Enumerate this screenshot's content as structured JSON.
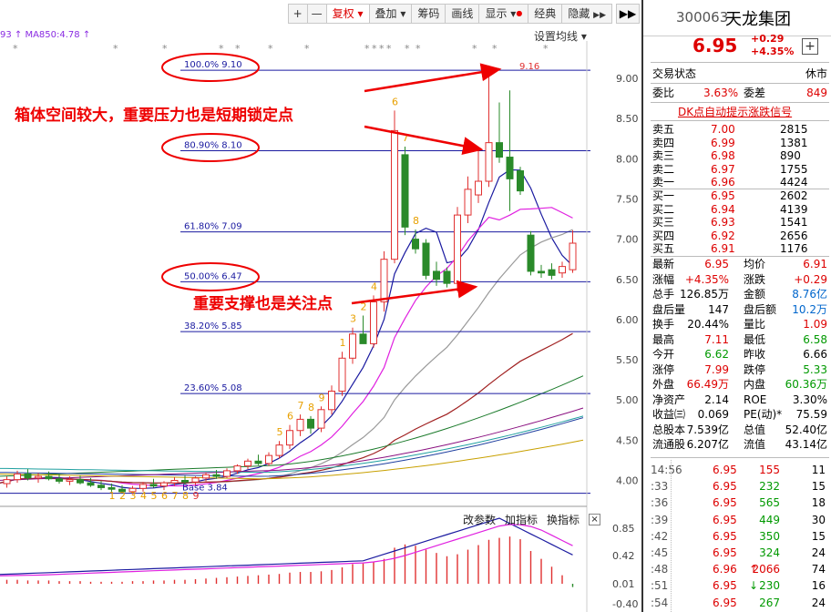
{
  "toolbar": {
    "plus": "+",
    "minus": "—",
    "fuquan": "复权",
    "diejia": "叠加",
    "chouma": "筹码",
    "huaxian": "画线",
    "xianshi": "显示",
    "jingdian": "经典",
    "yincang": "隐藏",
    "scroll": "▶▶"
  },
  "ma_legend": "93 ↑ MA850:4.78 ↑",
  "settings": "设置均线",
  "price_axis": [
    "9.00",
    "8.50",
    "8.00",
    "7.50",
    "7.00",
    "6.50",
    "6.00",
    "5.50",
    "5.00",
    "4.50",
    "4.00"
  ],
  "indicator_axis": [
    "0.85",
    "0.42",
    "0.01",
    "-0.40"
  ],
  "fib_levels": [
    {
      "label": "100.0% 9.10",
      "price": 9.1
    },
    {
      "label": "80.90% 8.10",
      "price": 8.1
    },
    {
      "label": "61.80% 7.09",
      "price": 7.09
    },
    {
      "label": "50.00% 6.47",
      "price": 6.47
    },
    {
      "label": "38.20% 5.85",
      "price": 5.85
    },
    {
      "label": "23.60% 5.08",
      "price": 5.08
    },
    {
      "label": "Base 3.84",
      "price": 3.84
    }
  ],
  "high_label": "9.16",
  "annotations": {
    "top": "箱体空间较大，重要压力也是短期锁定点",
    "bottom": "重要支撑也是关注点"
  },
  "indicator_menu": {
    "params": "改参数",
    "add": "加指标",
    "switch": "换指标",
    "close": "×"
  },
  "quote": {
    "code": "300063",
    "name": "天龙集团",
    "price": "6.95",
    "change": "+0.29",
    "change_pct": "+4.35%",
    "plus": "+",
    "trade_status_label": "交易状态",
    "trade_status": "休市",
    "weibi_label": "委比",
    "weibi": "3.63%",
    "weicha_label": "委差",
    "weicha": "849",
    "dk_signal": "DK点自动提示涨跌信号",
    "asks": [
      {
        "label": "卖五",
        "price": "7.00",
        "vol": "2815"
      },
      {
        "label": "卖四",
        "price": "6.99",
        "vol": "1381"
      },
      {
        "label": "卖三",
        "price": "6.98",
        "vol": "890"
      },
      {
        "label": "卖二",
        "price": "6.97",
        "vol": "1755"
      },
      {
        "label": "卖一",
        "price": "6.96",
        "vol": "4424"
      }
    ],
    "bids": [
      {
        "label": "买一",
        "price": "6.95",
        "vol": "2602"
      },
      {
        "label": "买二",
        "price": "6.94",
        "vol": "4139"
      },
      {
        "label": "买三",
        "price": "6.93",
        "vol": "1541"
      },
      {
        "label": "买四",
        "price": "6.92",
        "vol": "2656"
      },
      {
        "label": "买五",
        "price": "6.91",
        "vol": "1176"
      }
    ],
    "stats": [
      {
        "l1": "最新",
        "v1": "6.95",
        "c1": "red",
        "l2": "均价",
        "v2": "6.91",
        "c2": "red"
      },
      {
        "l1": "涨幅",
        "v1": "+4.35%",
        "c1": "red",
        "l2": "涨跌",
        "v2": "+0.29",
        "c2": "red"
      },
      {
        "l1": "总手",
        "v1": "126.85万",
        "c1": "",
        "l2": "金额",
        "v2": "8.76亿",
        "c2": "blu"
      },
      {
        "l1": "盘后量",
        "v1": "147",
        "c1": "",
        "l2": "盘后额",
        "v2": "10.2万",
        "c2": "blu"
      },
      {
        "l1": "换手",
        "v1": "20.44%",
        "c1": "",
        "l2": "量比",
        "v2": "1.09",
        "c2": "red"
      },
      {
        "l1": "最高",
        "v1": "7.11",
        "c1": "red",
        "l2": "最低",
        "v2": "6.58",
        "c2": "grn"
      },
      {
        "l1": "今开",
        "v1": "6.62",
        "c1": "grn",
        "l2": "昨收",
        "v2": "6.66",
        "c2": ""
      },
      {
        "l1": "涨停",
        "v1": "7.99",
        "c1": "red",
        "l2": "跌停",
        "v2": "5.33",
        "c2": "grn"
      },
      {
        "l1": "外盘",
        "v1": "66.49万",
        "c1": "red",
        "l2": "内盘",
        "v2": "60.36万",
        "c2": "grn"
      },
      {
        "l1": "净资产",
        "v1": "2.14",
        "c1": "",
        "l2": "ROE",
        "v2": "3.30%",
        "c2": ""
      },
      {
        "l1": "收益㈢",
        "v1": "0.069",
        "c1": "",
        "l2": "PE(动)*",
        "v2": "75.59",
        "c2": ""
      },
      {
        "l1": "总股本",
        "v1": "7.539亿",
        "c1": "",
        "l2": "总值",
        "v2": "52.40亿",
        "c2": ""
      },
      {
        "l1": "流通股",
        "v1": "6.207亿",
        "c1": "",
        "l2": "流值",
        "v2": "43.14亿",
        "c2": ""
      }
    ],
    "ticks": [
      {
        "time": "14:56",
        "price": "6.95",
        "vol": "155",
        "n": "11",
        "pc": "red",
        "vc": "red",
        "arrow": ""
      },
      {
        "time": ":33",
        "price": "6.95",
        "vol": "232",
        "n": "15",
        "pc": "red",
        "vc": "grn",
        "arrow": ""
      },
      {
        "time": ":36",
        "price": "6.95",
        "vol": "565",
        "n": "18",
        "pc": "red",
        "vc": "grn",
        "arrow": ""
      },
      {
        "time": ":39",
        "price": "6.95",
        "vol": "449",
        "n": "30",
        "pc": "red",
        "vc": "grn",
        "arrow": ""
      },
      {
        "time": ":42",
        "price": "6.95",
        "vol": "350",
        "n": "15",
        "pc": "red",
        "vc": "grn",
        "arrow": ""
      },
      {
        "time": ":45",
        "price": "6.95",
        "vol": "324",
        "n": "24",
        "pc": "red",
        "vc": "grn",
        "arrow": ""
      },
      {
        "time": ":48",
        "price": "6.96",
        "vol": "2066",
        "n": "74",
        "pc": "red",
        "vc": "red",
        "arrow": "↑"
      },
      {
        "time": ":51",
        "price": "6.95",
        "vol": "230",
        "n": "16",
        "pc": "red",
        "vc": "grn",
        "arrow": "↓"
      },
      {
        "time": ":54",
        "price": "6.95",
        "vol": "267",
        "n": "24",
        "pc": "red",
        "vc": "grn",
        "arrow": ""
      }
    ]
  },
  "candles": [
    {
      "o": 4.02,
      "h": 4.1,
      "l": 3.93,
      "c": 3.96
    },
    {
      "o": 3.96,
      "h": 4.05,
      "l": 3.91,
      "c": 4.01
    },
    {
      "o": 4.01,
      "h": 4.12,
      "l": 3.97,
      "c": 4.08
    },
    {
      "o": 4.08,
      "h": 4.14,
      "l": 4.0,
      "c": 4.03
    },
    {
      "o": 4.03,
      "h": 4.09,
      "l": 3.97,
      "c": 4.05
    },
    {
      "o": 4.05,
      "h": 4.11,
      "l": 4.0,
      "c": 4.02
    },
    {
      "o": 4.02,
      "h": 4.08,
      "l": 3.96,
      "c": 3.99
    },
    {
      "o": 3.99,
      "h": 4.05,
      "l": 3.94,
      "c": 4.01
    },
    {
      "o": 4.01,
      "h": 4.06,
      "l": 3.95,
      "c": 3.97
    },
    {
      "o": 3.97,
      "h": 4.03,
      "l": 3.92,
      "c": 3.94
    },
    {
      "o": 3.94,
      "h": 3.99,
      "l": 3.88,
      "c": 3.91
    },
    {
      "o": 3.91,
      "h": 3.96,
      "l": 3.86,
      "c": 3.89
    },
    {
      "o": 3.89,
      "h": 3.94,
      "l": 3.84,
      "c": 3.86
    },
    {
      "o": 3.86,
      "h": 3.93,
      "l": 3.83,
      "c": 3.9
    },
    {
      "o": 3.9,
      "h": 3.98,
      "l": 3.86,
      "c": 3.95
    },
    {
      "o": 3.95,
      "h": 4.02,
      "l": 3.91,
      "c": 3.93
    },
    {
      "o": 3.93,
      "h": 3.99,
      "l": 3.88,
      "c": 3.97
    },
    {
      "o": 3.97,
      "h": 4.04,
      "l": 3.93,
      "c": 4.0
    },
    {
      "o": 4.0,
      "h": 4.06,
      "l": 3.95,
      "c": 3.98
    },
    {
      "o": 3.98,
      "h": 4.05,
      "l": 3.94,
      "c": 4.03
    },
    {
      "o": 4.03,
      "h": 4.1,
      "l": 3.99,
      "c": 4.07
    },
    {
      "o": 4.07,
      "h": 4.13,
      "l": 4.02,
      "c": 4.05
    },
    {
      "o": 4.05,
      "h": 4.15,
      "l": 4.03,
      "c": 4.12
    },
    {
      "o": 4.12,
      "h": 4.2,
      "l": 4.08,
      "c": 4.18
    },
    {
      "o": 4.18,
      "h": 4.27,
      "l": 4.14,
      "c": 4.24
    },
    {
      "o": 4.24,
      "h": 4.32,
      "l": 4.19,
      "c": 4.21
    },
    {
      "o": 4.21,
      "h": 4.35,
      "l": 4.18,
      "c": 4.31
    },
    {
      "o": 4.31,
      "h": 4.49,
      "l": 4.27,
      "c": 4.44
    },
    {
      "o": 4.44,
      "h": 4.69,
      "l": 4.39,
      "c": 4.62
    },
    {
      "o": 4.62,
      "h": 4.82,
      "l": 4.55,
      "c": 4.76
    },
    {
      "o": 4.76,
      "h": 4.8,
      "l": 4.58,
      "c": 4.65
    },
    {
      "o": 4.65,
      "h": 4.92,
      "l": 4.6,
      "c": 4.88
    },
    {
      "o": 4.88,
      "h": 5.18,
      "l": 4.82,
      "c": 5.11
    },
    {
      "o": 5.11,
      "h": 5.6,
      "l": 5.05,
      "c": 5.52
    },
    {
      "o": 5.52,
      "h": 5.9,
      "l": 5.45,
      "c": 5.82
    },
    {
      "o": 5.82,
      "h": 6.05,
      "l": 5.72,
      "c": 5.7
    },
    {
      "o": 5.7,
      "h": 6.3,
      "l": 5.65,
      "c": 6.22
    },
    {
      "o": 6.22,
      "h": 6.85,
      "l": 6.1,
      "c": 6.75
    },
    {
      "o": 6.75,
      "h": 8.6,
      "l": 6.7,
      "c": 8.35
    },
    {
      "o": 8.05,
      "h": 8.15,
      "l": 7.05,
      "c": 7.15
    },
    {
      "o": 7.0,
      "h": 7.12,
      "l": 6.82,
      "c": 6.88
    },
    {
      "o": 6.95,
      "h": 7.0,
      "l": 6.5,
      "c": 6.55
    },
    {
      "o": 6.6,
      "h": 6.72,
      "l": 6.42,
      "c": 6.5
    },
    {
      "o": 6.6,
      "h": 6.65,
      "l": 6.4,
      "c": 6.45
    },
    {
      "o": 6.45,
      "h": 7.4,
      "l": 6.35,
      "c": 7.3
    },
    {
      "o": 7.3,
      "h": 7.78,
      "l": 7.2,
      "c": 7.62
    },
    {
      "o": 7.55,
      "h": 8.1,
      "l": 7.45,
      "c": 7.72
    },
    {
      "o": 7.72,
      "h": 9.16,
      "l": 7.65,
      "c": 8.2
    },
    {
      "o": 8.2,
      "h": 8.7,
      "l": 7.95,
      "c": 8.02
    },
    {
      "o": 8.02,
      "h": 8.85,
      "l": 7.35,
      "c": 7.75
    },
    {
      "o": 7.85,
      "h": 7.9,
      "l": 7.55,
      "c": 7.6
    },
    {
      "o": 7.05,
      "h": 7.1,
      "l": 6.55,
      "c": 6.6
    },
    {
      "o": 6.6,
      "h": 6.68,
      "l": 6.52,
      "c": 6.58
    },
    {
      "o": 6.62,
      "h": 6.7,
      "l": 6.5,
      "c": 6.55
    },
    {
      "o": 6.58,
      "h": 6.72,
      "l": 6.52,
      "c": 6.66
    },
    {
      "o": 6.62,
      "h": 7.11,
      "l": 6.58,
      "c": 6.95
    }
  ],
  "macd": [
    0.07,
    0.06,
    0.06,
    0.05,
    0.05,
    0.05,
    0.04,
    0.04,
    0.04,
    0.03,
    0.03,
    0.03,
    0.03,
    0.04,
    0.04,
    0.05,
    0.05,
    0.06,
    0.06,
    0.07,
    0.08,
    0.09,
    0.1,
    0.11,
    0.12,
    0.13,
    0.14,
    0.15,
    0.17,
    0.18,
    0.18,
    0.19,
    0.21,
    0.25,
    0.3,
    0.31,
    0.33,
    0.38,
    0.55,
    0.6,
    0.58,
    0.52,
    0.47,
    0.42,
    0.45,
    0.52,
    0.59,
    0.67,
    0.7,
    0.72,
    0.68,
    0.5,
    0.38,
    0.26,
    0.13,
    -0.05
  ]
}
